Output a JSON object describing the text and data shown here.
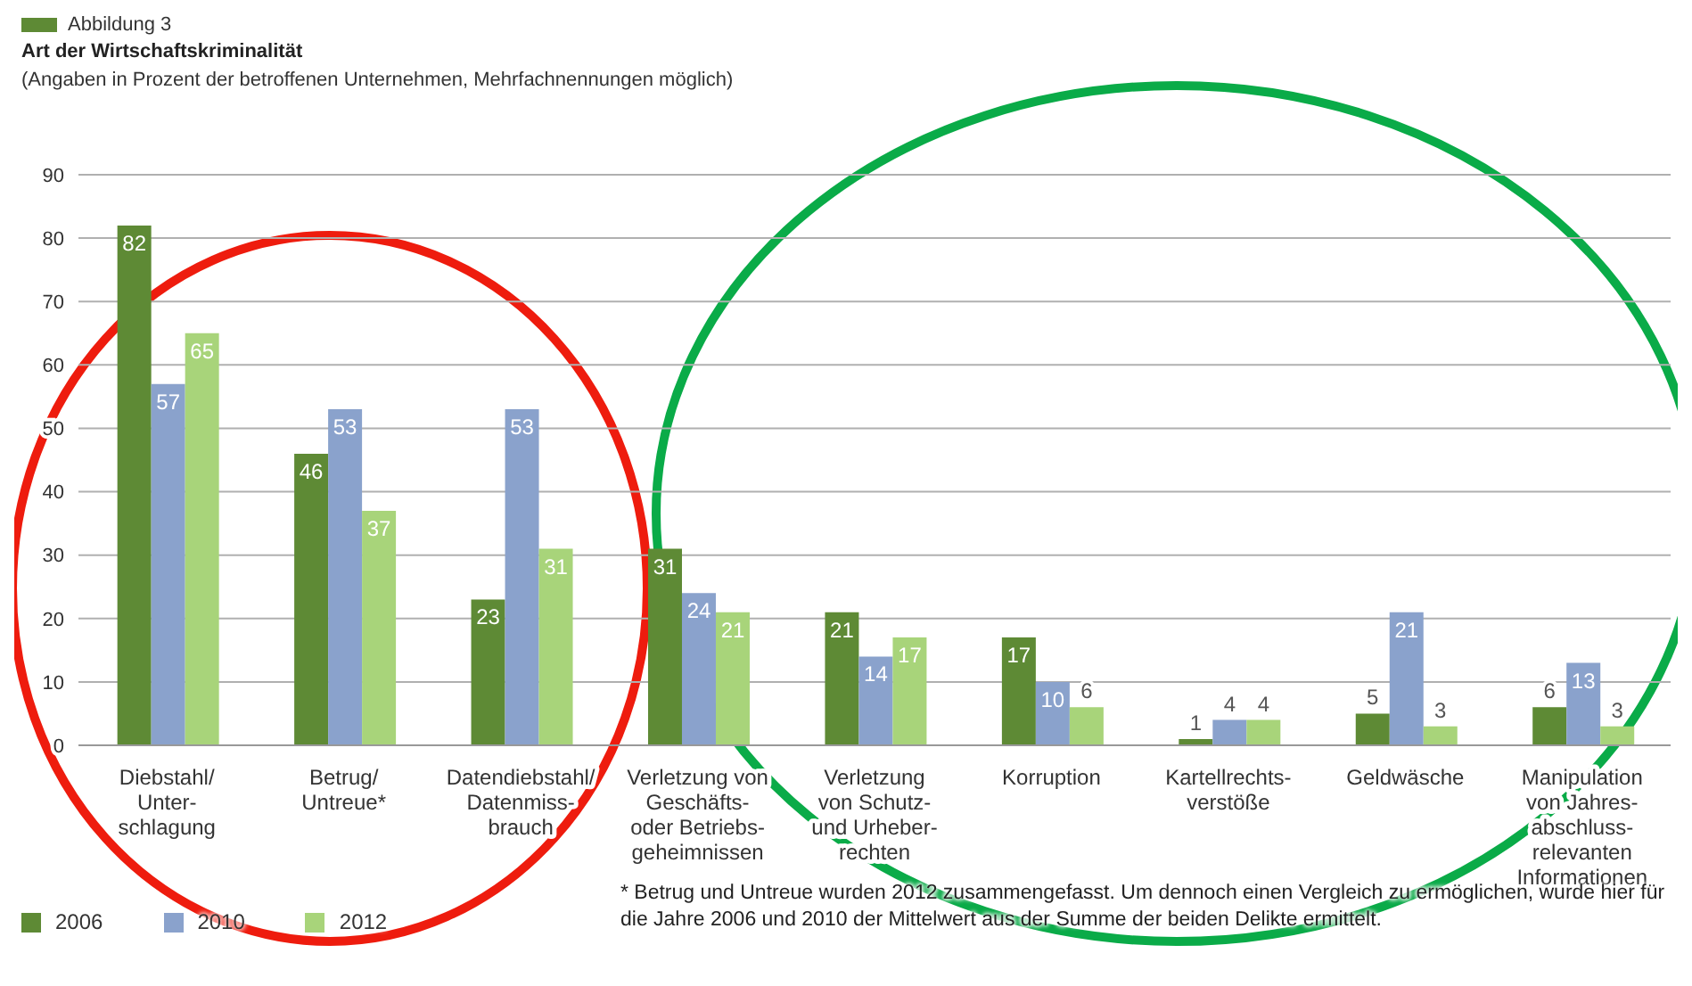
{
  "chart_data": {
    "type": "bar",
    "title": "Art der Wirtschaftskriminalität",
    "subtitle": "(Angaben in Prozent der betroffenen Unternehmen, Mehrfachnennungen möglich)",
    "categories": [
      "Diebstahl/\nUnter-\nschlagung",
      "Betrug/\nUntreue*",
      "Datendiebstahl/\nDatenmiss-\nbrauch",
      "Verletzung von\nGeschäfts-\noder Betriebs-\ngeheimnissen",
      "Verletzung\nvon Schutz-\nund Urheber-\nrechten",
      "Korruption",
      "Kartellrechts-\nverstöße",
      "Geldwäsche",
      "Manipulation\nvon Jahres-\nabschluss-\nrelevanten\nInformationen"
    ],
    "series": [
      {
        "name": "2006",
        "color": "#5e8a35",
        "values": [
          82,
          46,
          23,
          31,
          21,
          17,
          1,
          5,
          6
        ]
      },
      {
        "name": "2010",
        "color": "#8aa2cc",
        "values": [
          57,
          53,
          53,
          24,
          14,
          10,
          4,
          21,
          13
        ]
      },
      {
        "name": "2012",
        "color": "#a8d47a",
        "values": [
          65,
          37,
          31,
          21,
          17,
          6,
          4,
          3,
          3
        ]
      }
    ],
    "ylim": [
      0,
      90
    ],
    "yticks": [
      0,
      10,
      20,
      30,
      40,
      50,
      60,
      70,
      80,
      90
    ],
    "grid": "y",
    "legend": "bottom left",
    "data_labels": true,
    "annotations": [
      "Abbildung 3",
      "* Betrug und Untreue wurden 2012 zusammengefasst. Um dennoch einen Vergleich zu ermöglichen, wurde hier für die Jahre 2006 und 2010 der Mittelwert aus der Summe der beiden Delikte ermittelt."
    ]
  }
}
